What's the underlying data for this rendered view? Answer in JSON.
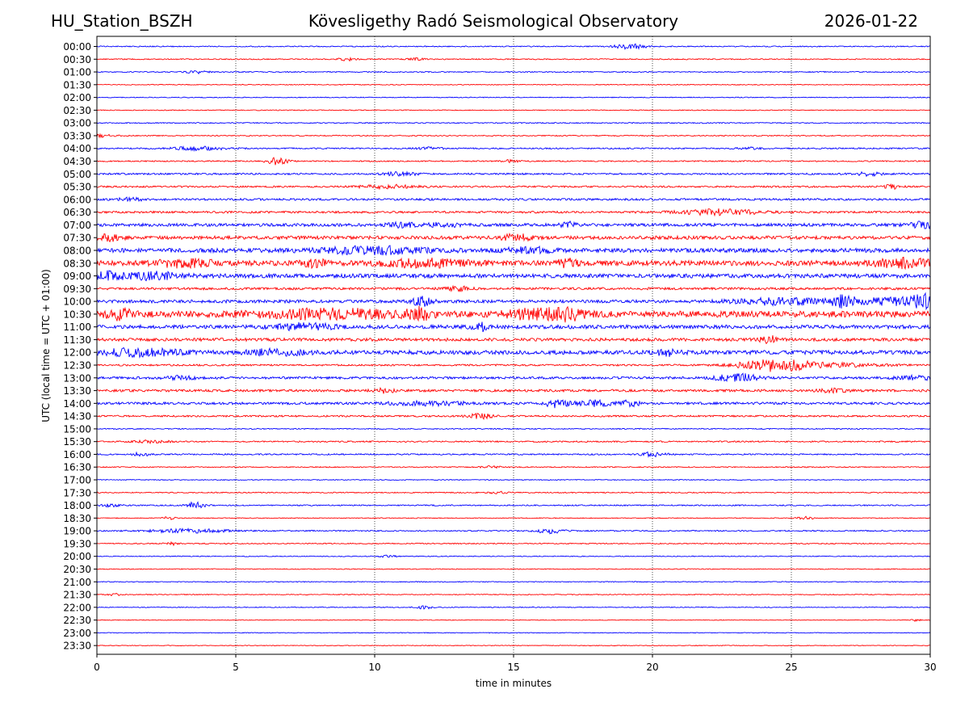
{
  "header": {
    "station": "HU_Station_BSZH",
    "observatory": "Kövesligethy Radó Seismological Observatory",
    "date": "2026-01-22"
  },
  "chart_data": {
    "type": "line",
    "title": "Kövesligethy Radó Seismological Observatory",
    "xlabel": "time in minutes",
    "ylabel": "UTC (local time = UTC + 01:00)",
    "xlim": [
      0,
      30
    ],
    "xticks": [
      "0",
      "5",
      "10",
      "15",
      "20",
      "25",
      "30"
    ],
    "grid": "vertical dotted lines at 5-minute intervals",
    "series_colors": [
      "#0000ff",
      "#ff0000"
    ],
    "rows": [
      {
        "label": "00:00",
        "amp": 0.15,
        "events": [
          {
            "t": 19.2,
            "a": 0.7,
            "w": 0.6
          }
        ]
      },
      {
        "label": "00:30",
        "amp": 0.15,
        "events": [
          {
            "t": 9.0,
            "a": 0.5,
            "w": 0.3
          },
          {
            "t": 11.5,
            "a": 0.35,
            "w": 0.3
          }
        ]
      },
      {
        "label": "01:00",
        "amp": 0.15,
        "events": [
          {
            "t": 3.6,
            "a": 0.4,
            "w": 0.4
          }
        ]
      },
      {
        "label": "01:30",
        "amp": 0.12,
        "events": []
      },
      {
        "label": "02:00",
        "amp": 0.12,
        "events": []
      },
      {
        "label": "02:30",
        "amp": 0.12,
        "events": []
      },
      {
        "label": "03:00",
        "amp": 0.15,
        "events": []
      },
      {
        "label": "03:30",
        "amp": 0.15,
        "events": [
          {
            "t": 0.2,
            "a": 0.4,
            "w": 0.4
          }
        ]
      },
      {
        "label": "04:00",
        "amp": 0.2,
        "events": [
          {
            "t": 3.7,
            "a": 0.5,
            "w": 1.0
          },
          {
            "t": 12.0,
            "a": 0.3,
            "w": 0.4
          },
          {
            "t": 23.5,
            "a": 0.35,
            "w": 0.4
          }
        ]
      },
      {
        "label": "04:30",
        "amp": 0.18,
        "events": [
          {
            "t": 6.5,
            "a": 1.0,
            "w": 0.4
          },
          {
            "t": 14.8,
            "a": 0.3,
            "w": 0.4
          }
        ]
      },
      {
        "label": "05:00",
        "amp": 0.25,
        "events": [
          {
            "t": 10.9,
            "a": 0.5,
            "w": 0.6
          },
          {
            "t": 27.8,
            "a": 0.5,
            "w": 0.5
          }
        ]
      },
      {
        "label": "05:30",
        "amp": 0.25,
        "events": [
          {
            "t": 10.5,
            "a": 0.5,
            "w": 1.0
          },
          {
            "t": 28.6,
            "a": 0.6,
            "w": 0.3
          }
        ]
      },
      {
        "label": "06:00",
        "amp": 0.3,
        "events": [
          {
            "t": 1.2,
            "a": 0.4,
            "w": 0.5
          }
        ]
      },
      {
        "label": "06:30",
        "amp": 0.3,
        "events": [
          {
            "t": 22.5,
            "a": 0.8,
            "w": 1.5
          }
        ]
      },
      {
        "label": "07:00",
        "amp": 0.45,
        "events": [
          {
            "t": 11.0,
            "a": 0.6,
            "w": 0.5
          },
          {
            "t": 12.5,
            "a": 0.6,
            "w": 0.5
          },
          {
            "t": 17.0,
            "a": 0.7,
            "w": 0.3
          },
          {
            "t": 29.8,
            "a": 0.8,
            "w": 0.5
          }
        ]
      },
      {
        "label": "07:30",
        "amp": 0.5,
        "events": [
          {
            "t": 0.4,
            "a": 0.8,
            "w": 0.5
          },
          {
            "t": 15.1,
            "a": 0.9,
            "w": 0.5
          }
        ]
      },
      {
        "label": "08:00",
        "amp": 0.6,
        "events": [
          {
            "t": 10.0,
            "a": 0.9,
            "w": 2.0
          },
          {
            "t": 15.5,
            "a": 0.8,
            "w": 0.8
          }
        ]
      },
      {
        "label": "08:30",
        "amp": 0.75,
        "events": [
          {
            "t": 3.2,
            "a": 1.0,
            "w": 1.0
          },
          {
            "t": 7.8,
            "a": 1.1,
            "w": 0.4
          },
          {
            "t": 11.8,
            "a": 0.9,
            "w": 1.5
          },
          {
            "t": 17.0,
            "a": 1.0,
            "w": 0.4
          },
          {
            "t": 29.0,
            "a": 1.1,
            "w": 1.0
          }
        ]
      },
      {
        "label": "09:00",
        "amp": 0.6,
        "events": [
          {
            "t": 0.4,
            "a": 1.0,
            "w": 0.5
          },
          {
            "t": 2.0,
            "a": 0.9,
            "w": 1.0
          }
        ]
      },
      {
        "label": "09:30",
        "amp": 0.35,
        "events": [
          {
            "t": 13.0,
            "a": 0.6,
            "w": 0.4
          }
        ]
      },
      {
        "label": "10:00",
        "amp": 0.45,
        "events": [
          {
            "t": 11.7,
            "a": 1.2,
            "w": 0.4
          },
          {
            "t": 24.5,
            "a": 0.9,
            "w": 1.5
          },
          {
            "t": 26.8,
            "a": 1.1,
            "w": 0.4
          },
          {
            "t": 28.5,
            "a": 1.0,
            "w": 2.0
          },
          {
            "t": 29.7,
            "a": 1.6,
            "w": 0.3
          }
        ]
      },
      {
        "label": "10:30",
        "amp": 0.9,
        "events": [
          {
            "t": 0.8,
            "a": 1.2,
            "w": 0.5
          },
          {
            "t": 8.5,
            "a": 1.1,
            "w": 2.5
          },
          {
            "t": 11.6,
            "a": 1.3,
            "w": 0.4
          },
          {
            "t": 15.8,
            "a": 1.3,
            "w": 1.0
          },
          {
            "t": 17.0,
            "a": 1.2,
            "w": 0.6
          }
        ]
      },
      {
        "label": "11:00",
        "amp": 0.55,
        "events": [
          {
            "t": 7.5,
            "a": 0.9,
            "w": 1.0
          },
          {
            "t": 13.8,
            "a": 1.2,
            "w": 0.3
          }
        ]
      },
      {
        "label": "11:30",
        "amp": 0.45,
        "events": [
          {
            "t": 24.2,
            "a": 1.0,
            "w": 0.3
          }
        ]
      },
      {
        "label": "12:00",
        "amp": 0.6,
        "events": [
          {
            "t": 1.5,
            "a": 0.9,
            "w": 1.5
          },
          {
            "t": 6.5,
            "a": 0.8,
            "w": 1.0
          },
          {
            "t": 20.6,
            "a": 0.8,
            "w": 0.5
          }
        ]
      },
      {
        "label": "12:30",
        "amp": 0.25,
        "events": [
          {
            "t": 24.3,
            "a": 1.5,
            "w": 1.2
          },
          {
            "t": 26.0,
            "a": 0.6,
            "w": 2.0
          }
        ]
      },
      {
        "label": "13:00",
        "amp": 0.35,
        "events": [
          {
            "t": 3.0,
            "a": 0.5,
            "w": 0.5
          },
          {
            "t": 22.8,
            "a": 0.8,
            "w": 0.6
          },
          {
            "t": 23.5,
            "a": 0.7,
            "w": 0.5
          },
          {
            "t": 29.5,
            "a": 0.5,
            "w": 0.8
          }
        ]
      },
      {
        "label": "13:30",
        "amp": 0.35,
        "events": [
          {
            "t": 10.3,
            "a": 0.6,
            "w": 0.4
          },
          {
            "t": 26.5,
            "a": 0.5,
            "w": 0.5
          }
        ]
      },
      {
        "label": "14:00",
        "amp": 0.35,
        "events": [
          {
            "t": 12.0,
            "a": 0.5,
            "w": 1.5
          },
          {
            "t": 16.5,
            "a": 1.0,
            "w": 0.4
          },
          {
            "t": 17.8,
            "a": 0.8,
            "w": 0.8
          },
          {
            "t": 19.2,
            "a": 0.9,
            "w": 0.3
          }
        ]
      },
      {
        "label": "14:30",
        "amp": 0.25,
        "events": [
          {
            "t": 13.8,
            "a": 0.9,
            "w": 0.4
          }
        ]
      },
      {
        "label": "15:00",
        "amp": 0.15,
        "events": []
      },
      {
        "label": "15:30",
        "amp": 0.2,
        "events": [
          {
            "t": 2.0,
            "a": 0.4,
            "w": 0.6
          }
        ]
      },
      {
        "label": "16:00",
        "amp": 0.2,
        "events": [
          {
            "t": 1.6,
            "a": 0.5,
            "w": 0.3
          },
          {
            "t": 20.0,
            "a": 0.6,
            "w": 0.5
          }
        ]
      },
      {
        "label": "16:30",
        "amp": 0.15,
        "events": [
          {
            "t": 14.2,
            "a": 0.3,
            "w": 0.4
          }
        ]
      },
      {
        "label": "17:00",
        "amp": 0.12,
        "events": []
      },
      {
        "label": "17:30",
        "amp": 0.15,
        "events": [
          {
            "t": 14.5,
            "a": 0.3,
            "w": 0.4
          }
        ]
      },
      {
        "label": "18:00",
        "amp": 0.18,
        "events": [
          {
            "t": 0.5,
            "a": 0.4,
            "w": 0.3
          },
          {
            "t": 3.6,
            "a": 1.2,
            "w": 0.3
          }
        ]
      },
      {
        "label": "18:30",
        "amp": 0.12,
        "events": [
          {
            "t": 2.6,
            "a": 0.5,
            "w": 0.2
          },
          {
            "t": 25.5,
            "a": 0.4,
            "w": 0.3
          }
        ]
      },
      {
        "label": "19:00",
        "amp": 0.18,
        "events": [
          {
            "t": 3.3,
            "a": 0.5,
            "w": 1.6
          },
          {
            "t": 16.3,
            "a": 0.7,
            "w": 0.5
          }
        ]
      },
      {
        "label": "19:30",
        "amp": 0.15,
        "events": [
          {
            "t": 2.7,
            "a": 0.5,
            "w": 0.2
          }
        ]
      },
      {
        "label": "20:00",
        "amp": 0.12,
        "events": [
          {
            "t": 10.5,
            "a": 0.3,
            "w": 0.3
          }
        ]
      },
      {
        "label": "20:30",
        "amp": 0.12,
        "events": []
      },
      {
        "label": "21:00",
        "amp": 0.12,
        "events": []
      },
      {
        "label": "21:30",
        "amp": 0.12,
        "events": [
          {
            "t": 0.6,
            "a": 0.5,
            "w": 0.2
          }
        ]
      },
      {
        "label": "22:00",
        "amp": 0.12,
        "events": [
          {
            "t": 11.8,
            "a": 0.5,
            "w": 0.3
          }
        ]
      },
      {
        "label": "22:30",
        "amp": 0.1,
        "events": [
          {
            "t": 29.5,
            "a": 0.3,
            "w": 0.2
          }
        ]
      },
      {
        "label": "23:00",
        "amp": 0.1,
        "events": []
      },
      {
        "label": "23:30",
        "amp": 0.1,
        "events": []
      }
    ]
  }
}
